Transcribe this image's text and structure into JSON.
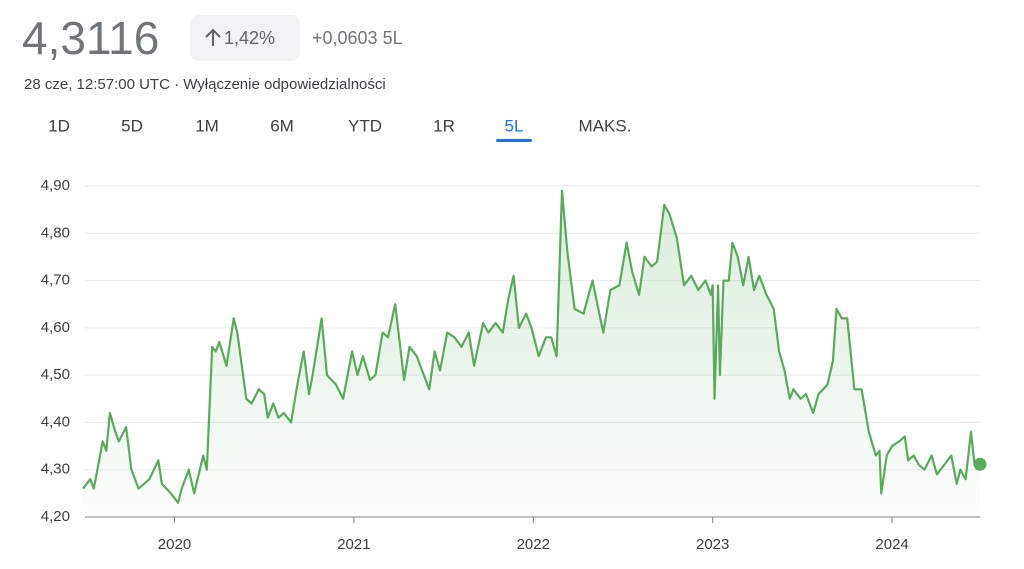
{
  "header": {
    "price": "4,3116",
    "change_percent": "1,42%",
    "change": "+0,0603 5L",
    "timestamp": "28 cze, 12:57:00 UTC · Wyłączenie odpowiedzialności",
    "tabs": [
      "1D",
      "5D",
      "1M",
      "6M",
      "YTD",
      "1R",
      "5L",
      "MAKS."
    ],
    "selected_tab": "5L"
  },
  "chart_data": {
    "type": "line",
    "color": "#5aa95e",
    "grid": true,
    "xlim": [
      2019.49,
      2024.49
    ],
    "xticks": [
      2020,
      2021,
      2022,
      2023,
      2024
    ],
    "ylim": [
      4.2,
      4.9
    ],
    "yticks": [
      {
        "value": 4.2,
        "label": "4,20"
      },
      {
        "value": 4.3,
        "label": "4,30"
      },
      {
        "value": 4.4,
        "label": "4,40"
      },
      {
        "value": 4.5,
        "label": "4,50"
      },
      {
        "value": 4.6,
        "label": "4,60"
      },
      {
        "value": 4.7,
        "label": "4,70"
      },
      {
        "value": 4.8,
        "label": "4,80"
      },
      {
        "value": 4.9,
        "label": "4,90"
      }
    ],
    "x": [
      2019.49,
      2019.53,
      2019.55,
      2019.6,
      2019.62,
      2019.64,
      2019.67,
      2019.69,
      2019.73,
      2019.76,
      2019.8,
      2019.86,
      2019.91,
      2019.93,
      2019.98,
      2020.02,
      2020.04,
      2020.08,
      2020.11,
      2020.16,
      2020.18,
      2020.21,
      2020.23,
      2020.25,
      2020.29,
      2020.33,
      2020.35,
      2020.4,
      2020.43,
      2020.47,
      2020.5,
      2020.52,
      2020.55,
      2020.58,
      2020.61,
      2020.65,
      2020.68,
      2020.72,
      2020.75,
      2020.77,
      2020.82,
      2020.85,
      2020.9,
      2020.94,
      2020.99,
      2021.02,
      2021.05,
      2021.09,
      2021.12,
      2021.16,
      2021.19,
      2021.23,
      2021.28,
      2021.31,
      2021.35,
      2021.39,
      2021.42,
      2021.45,
      2021.48,
      2021.52,
      2021.56,
      2021.6,
      2021.64,
      2021.67,
      2021.72,
      2021.75,
      2021.79,
      2021.83,
      2021.86,
      2021.89,
      2021.92,
      2021.96,
      2021.99,
      2022.03,
      2022.07,
      2022.1,
      2022.13,
      2022.16,
      2022.19,
      2022.23,
      2022.28,
      2022.33,
      2022.39,
      2022.43,
      2022.48,
      2022.52,
      2022.55,
      2022.59,
      2022.62,
      2022.66,
      2022.69,
      2022.73,
      2022.76,
      2022.8,
      2022.84,
      2022.88,
      2022.92,
      2022.96,
      2022.99,
      2023.0,
      2023.01,
      2023.03,
      2023.04,
      2023.06,
      2023.09,
      2023.11,
      2023.14,
      2023.17,
      2023.2,
      2023.23,
      2023.26,
      2023.3,
      2023.34,
      2023.37,
      2023.4,
      2023.43,
      2023.45,
      2023.49,
      2023.52,
      2023.56,
      2023.59,
      2023.64,
      2023.67,
      2023.69,
      2023.72,
      2023.75,
      2023.79,
      2023.83,
      2023.87,
      2023.91,
      2023.93,
      2023.94,
      2023.97,
      2024.0,
      2024.04,
      2024.07,
      2024.09,
      2024.12,
      2024.15,
      2024.18,
      2024.22,
      2024.25,
      2024.29,
      2024.33,
      2024.36,
      2024.38,
      2024.41,
      2024.44,
      2024.46,
      2024.49
    ],
    "values": [
      4.26,
      4.28,
      4.26,
      4.36,
      4.34,
      4.42,
      4.38,
      4.36,
      4.39,
      4.3,
      4.26,
      4.28,
      4.32,
      4.27,
      4.25,
      4.23,
      4.26,
      4.3,
      4.25,
      4.33,
      4.3,
      4.56,
      4.55,
      4.57,
      4.52,
      4.62,
      4.59,
      4.45,
      4.44,
      4.47,
      4.46,
      4.41,
      4.44,
      4.41,
      4.42,
      4.4,
      4.47,
      4.55,
      4.46,
      4.5,
      4.62,
      4.5,
      4.48,
      4.45,
      4.55,
      4.5,
      4.54,
      4.49,
      4.5,
      4.59,
      4.58,
      4.65,
      4.49,
      4.56,
      4.54,
      4.5,
      4.47,
      4.55,
      4.51,
      4.59,
      4.58,
      4.56,
      4.59,
      4.52,
      4.61,
      4.59,
      4.61,
      4.59,
      4.66,
      4.71,
      4.6,
      4.63,
      4.6,
      4.54,
      4.58,
      4.58,
      4.54,
      4.89,
      4.76,
      4.64,
      4.63,
      4.7,
      4.59,
      4.68,
      4.69,
      4.78,
      4.72,
      4.67,
      4.75,
      4.73,
      4.74,
      4.86,
      4.84,
      4.79,
      4.69,
      4.71,
      4.68,
      4.7,
      4.67,
      4.69,
      4.45,
      4.69,
      4.5,
      4.7,
      4.7,
      4.78,
      4.75,
      4.69,
      4.75,
      4.68,
      4.71,
      4.67,
      4.64,
      4.55,
      4.51,
      4.45,
      4.47,
      4.45,
      4.46,
      4.42,
      4.46,
      4.48,
      4.53,
      4.64,
      4.62,
      4.62,
      4.47,
      4.47,
      4.38,
      4.33,
      4.34,
      4.25,
      4.33,
      4.35,
      4.36,
      4.37,
      4.32,
      4.33,
      4.31,
      4.3,
      4.33,
      4.29,
      4.31,
      4.33,
      4.27,
      4.3,
      4.28,
      4.38,
      4.31,
      4.3116
    ]
  }
}
